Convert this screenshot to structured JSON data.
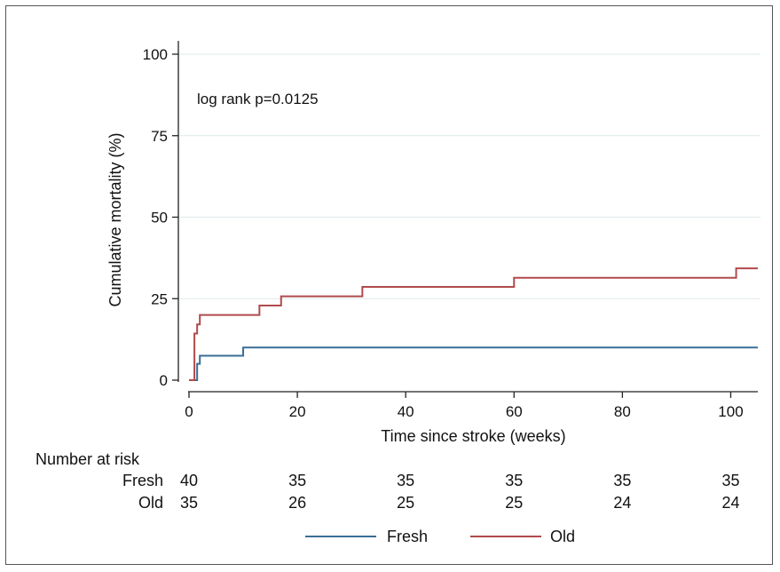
{
  "chart_data": {
    "type": "line",
    "title": "",
    "xlabel": "Time since stroke (weeks)",
    "ylabel": "Cumulative mortality (%)",
    "xlim": [
      0,
      105
    ],
    "ylim": [
      0,
      100
    ],
    "xticks": [
      0,
      20,
      40,
      60,
      80,
      100
    ],
    "yticks": [
      0,
      25,
      50,
      75,
      100
    ],
    "grid": "horizontal",
    "annotation": "log rank p=0.0125",
    "series": [
      {
        "name": "Fresh",
        "color": "#3a6e96",
        "step": true,
        "x": [
          0,
          1.5,
          2,
          10,
          105
        ],
        "y": [
          0,
          5,
          7.5,
          10,
          10
        ]
      },
      {
        "name": "Old",
        "color": "#b14a4c",
        "step": true,
        "x": [
          0,
          1,
          1.5,
          2,
          13,
          17,
          32,
          60,
          101,
          105
        ],
        "y": [
          0,
          14.3,
          17.1,
          20,
          22.9,
          25.7,
          28.6,
          31.4,
          34.3,
          34.3
        ]
      }
    ],
    "risk_table": {
      "title": "Number at risk",
      "times": [
        0,
        20,
        40,
        60,
        80,
        100
      ],
      "rows": [
        {
          "label": "Fresh",
          "values": [
            "40",
            "35",
            "35",
            "35",
            "35",
            "35"
          ]
        },
        {
          "label": "Old",
          "values": [
            "35",
            "26",
            "25",
            "25",
            "24",
            "24"
          ]
        }
      ]
    },
    "legend": {
      "position": "bottom",
      "entries": [
        {
          "label": "Fresh",
          "color": "#3a6e96"
        },
        {
          "label": "Old",
          "color": "#b14a4c"
        }
      ]
    }
  }
}
